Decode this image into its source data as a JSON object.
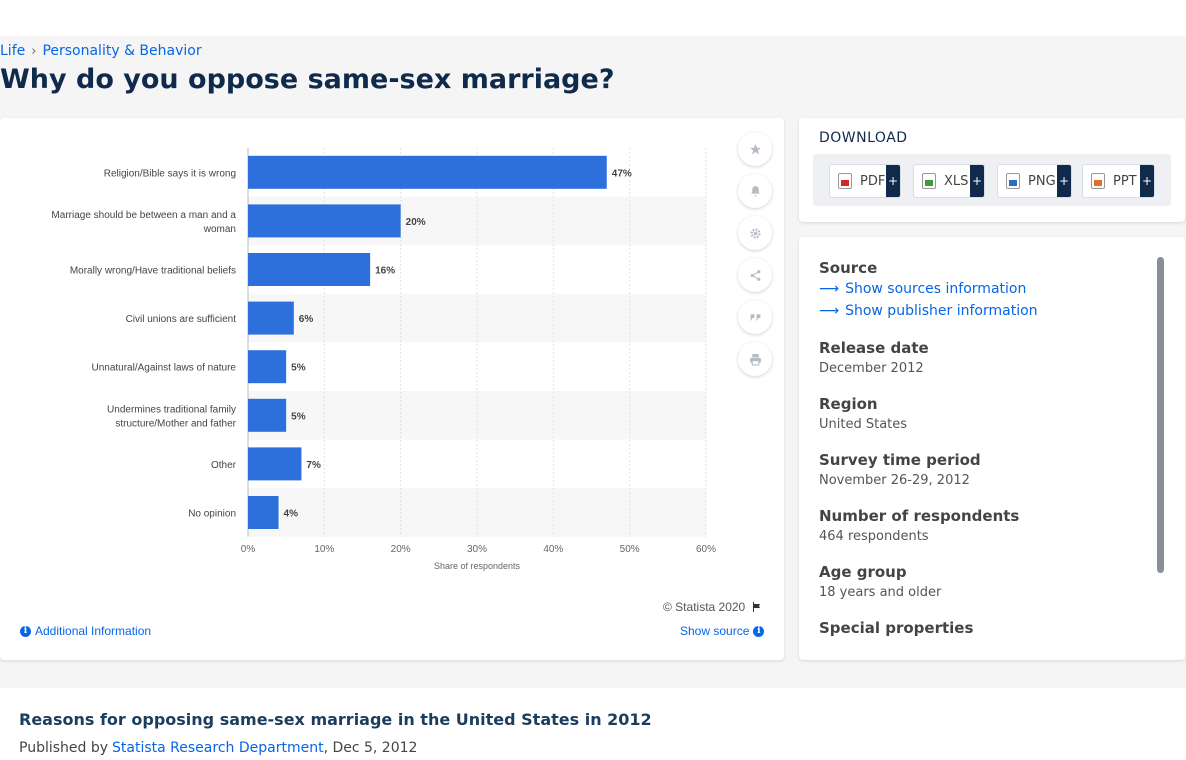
{
  "breadcrumb": {
    "items": [
      "Life",
      "Personality & Behavior"
    ]
  },
  "page_title": "Why do you oppose same-sex marriage?",
  "chart_tools": {
    "icons": [
      "star-icon",
      "bell-icon",
      "gear-icon",
      "share-icon",
      "quote-icon",
      "print-icon"
    ]
  },
  "chart_data": {
    "type": "bar",
    "orientation": "horizontal",
    "categories": [
      "Religion/Bible says it is wrong",
      "Marriage should be between a man and a woman",
      "Morally wrong/Have traditional beliefs",
      "Civil unions are sufficient",
      "Unnatural/Against laws of nature",
      "Undermines traditional family structure/Mother and father",
      "Other",
      "No opinion"
    ],
    "category_lines": [
      [
        "Religion/Bible says it is wrong"
      ],
      [
        "Marriage should be between a man and a",
        "woman"
      ],
      [
        "Morally wrong/Have traditional beliefs"
      ],
      [
        "Civil unions are sufficient"
      ],
      [
        "Unnatural/Against laws of nature"
      ],
      [
        "Undermines traditional family",
        "structure/Mother and father"
      ],
      [
        "Other"
      ],
      [
        "No opinion"
      ]
    ],
    "values": [
      47,
      20,
      16,
      6,
      5,
      5,
      7,
      4
    ],
    "value_labels": [
      "47%",
      "20%",
      "16%",
      "6%",
      "5%",
      "5%",
      "7%",
      "4%"
    ],
    "xlim": [
      0,
      60
    ],
    "x_ticks": [
      "0%",
      "10%",
      "20%",
      "30%",
      "40%",
      "50%",
      "60%"
    ],
    "xlabel": "Share of respondents",
    "grid": true,
    "bar_color": "#2d6fdb"
  },
  "chart_footer": {
    "copyright": "© Statista 2020",
    "additional_info": "Additional Information",
    "show_source": "Show source"
  },
  "download": {
    "title": "DOWNLOAD",
    "formats": [
      "PDF",
      "XLS",
      "PNG",
      "PPT"
    ],
    "plus": "+"
  },
  "details": {
    "source_label": "Source",
    "show_sources": "Show sources information",
    "show_publisher": "Show publisher information",
    "fields": [
      {
        "label": "Release date",
        "value": "December 2012"
      },
      {
        "label": "Region",
        "value": "United States"
      },
      {
        "label": "Survey time period",
        "value": "November 26-29, 2012"
      },
      {
        "label": "Number of respondents",
        "value": "464 respondents"
      },
      {
        "label": "Age group",
        "value": "18 years and older"
      },
      {
        "label": "Special properties",
        "value": ""
      }
    ]
  },
  "description": {
    "title": "Reasons for opposing same-sex marriage in the United States in 2012",
    "published_prefix": "Published by",
    "author": "Statista Research Department",
    "date": ", Dec 5, 2012"
  },
  "colors": {
    "accent": "#0666e5",
    "navy": "#0f2a4a"
  }
}
